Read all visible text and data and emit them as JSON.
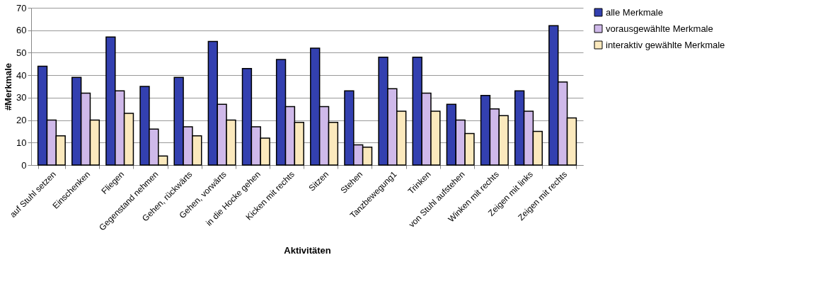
{
  "chart_data": {
    "type": "bar",
    "xlabel": "Aktivitäten",
    "ylabel": "#Merkmale",
    "categories": [
      "auf Stuhl setzen",
      "Einschenken",
      "Fliegen",
      "Gegenstand nehmen",
      "Gehen, rückwärts",
      "Gehen, vorwärts",
      "in die Hocke gehen",
      "Kicken mit rechts",
      "Sitzen",
      "Stehen",
      "Tanzbewegung1",
      "Trinken",
      "von Stuhl aufstehen",
      "Winken mit rechts",
      "Zeigen mit links",
      "Zeigen mit rechts"
    ],
    "series": [
      {
        "name": "alle Merkmale",
        "color": "#3340b0",
        "values": [
          44,
          39,
          57,
          35,
          39,
          55,
          43,
          47,
          52,
          33,
          48,
          48,
          27,
          31,
          33,
          62
        ]
      },
      {
        "name": "vorausgewählte Merkmale",
        "color": "#cfb9ea",
        "values": [
          20,
          32,
          33,
          16,
          17,
          27,
          17,
          26,
          26,
          9,
          34,
          32,
          20,
          25,
          24,
          37
        ]
      },
      {
        "name": "interaktiv gewählte Merkmale",
        "color": "#fbe9bd",
        "values": [
          13,
          20,
          23,
          4,
          13,
          20,
          12,
          19,
          19,
          8,
          24,
          24,
          14,
          22,
          15,
          21
        ]
      }
    ],
    "ylim": [
      0,
      70
    ],
    "yticks": [
      0,
      10,
      20,
      30,
      40,
      50,
      60,
      70
    ],
    "grid": "y",
    "legend": "right"
  }
}
